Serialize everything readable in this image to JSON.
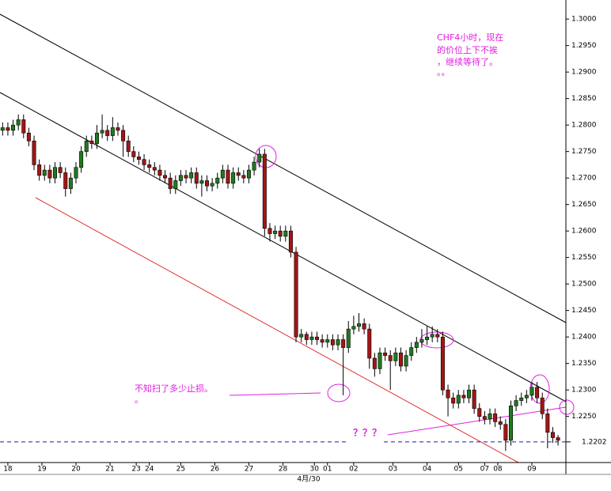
{
  "chart_data": {
    "type": "candlestick",
    "xlim": [
      -0.5,
      107.5
    ],
    "ylim": [
      1.2163,
      1.3036
    ],
    "yticks": [
      {
        "value": 1.3,
        "label": "1.3000"
      },
      {
        "value": 1.295,
        "label": "1.2950"
      },
      {
        "value": 1.29,
        "label": "1.2900"
      },
      {
        "value": 1.285,
        "label": "1.2850"
      },
      {
        "value": 1.28,
        "label": "1.2800"
      },
      {
        "value": 1.275,
        "label": "1.2750"
      },
      {
        "value": 1.27,
        "label": "1.2700"
      },
      {
        "value": 1.265,
        "label": "1.2650"
      },
      {
        "value": 1.26,
        "label": "1.2600"
      },
      {
        "value": 1.255,
        "label": "1.2550"
      },
      {
        "value": 1.25,
        "label": "1.2500"
      },
      {
        "value": 1.245,
        "label": "1.2450"
      },
      {
        "value": 1.24,
        "label": "1.2400"
      },
      {
        "value": 1.235,
        "label": "1.2350"
      },
      {
        "value": 1.23,
        "label": "1.2300"
      },
      {
        "value": 1.225,
        "label": "1.2250"
      }
    ],
    "xticks": [
      {
        "value": 1,
        "label": "18"
      },
      {
        "value": 7.5,
        "label": "19"
      },
      {
        "value": 14,
        "label": "20"
      },
      {
        "value": 20.5,
        "label": "21"
      },
      {
        "value": 25.5,
        "label": "23"
      },
      {
        "value": 28,
        "label": "24"
      },
      {
        "value": 34,
        "label": "25"
      },
      {
        "value": 40.5,
        "label": "26"
      },
      {
        "value": 47,
        "label": "27"
      },
      {
        "value": 53.5,
        "label": "28"
      },
      {
        "value": 59.5,
        "label": "30"
      },
      {
        "value": 62,
        "label": "01"
      },
      {
        "value": 67,
        "label": "02"
      },
      {
        "value": 74.5,
        "label": "03"
      },
      {
        "value": 81,
        "label": "04"
      },
      {
        "value": 87,
        "label": "05"
      },
      {
        "value": 92,
        "label": "07"
      },
      {
        "value": 94.5,
        "label": "08"
      },
      {
        "value": 101,
        "label": "09"
      }
    ],
    "x_sublabel": "4月/30",
    "up_color": "#1f7a1f",
    "down_color": "#a31515",
    "open": [
      1.279,
      1.2795,
      1.279,
      1.28,
      1.281,
      1.2785,
      1.277,
      1.2725,
      1.2705,
      1.2715,
      1.27,
      1.272,
      1.271,
      1.268,
      1.27,
      1.272,
      1.275,
      1.277,
      1.2765,
      1.2785,
      1.279,
      1.278,
      1.2795,
      1.279,
      1.277,
      1.275,
      1.274,
      1.2735,
      1.2725,
      1.272,
      1.2715,
      1.2705,
      1.27,
      1.268,
      1.2695,
      1.2705,
      1.27,
      1.271,
      1.269,
      1.2695,
      1.2685,
      1.269,
      1.27,
      1.2715,
      1.269,
      1.271,
      1.2705,
      1.27,
      1.2715,
      1.273,
      1.2745,
      1.2605,
      1.2595,
      1.26,
      1.259,
      1.26,
      1.256,
      1.24,
      1.2405,
      1.2395,
      1.24,
      1.2395,
      1.239,
      1.2395,
      1.2385,
      1.2395,
      1.238,
      1.2415,
      1.242,
      1.2425,
      1.2415,
      1.236,
      1.234,
      1.237,
      1.2365,
      1.2355,
      1.237,
      1.2345,
      1.2365,
      1.238,
      1.239,
      1.2395,
      1.24,
      1.2405,
      1.24,
      1.23,
      1.2285,
      1.2275,
      1.229,
      1.2285,
      1.23,
      1.2265,
      1.225,
      1.2245,
      1.2255,
      1.224,
      1.2235,
      1.2205,
      1.227,
      1.228,
      1.2285,
      1.229,
      1.2305,
      1.2285,
      1.2255,
      1.222,
      1.221
    ],
    "high": [
      1.2805,
      1.2805,
      1.281,
      1.282,
      1.282,
      1.2795,
      1.278,
      1.2735,
      1.2725,
      1.2725,
      1.273,
      1.273,
      1.272,
      1.271,
      1.273,
      1.276,
      1.278,
      1.278,
      1.28,
      1.282,
      1.28,
      1.2815,
      1.2805,
      1.28,
      1.278,
      1.276,
      1.275,
      1.2745,
      1.2735,
      1.273,
      1.2725,
      1.2715,
      1.271,
      1.2705,
      1.2715,
      1.2715,
      1.272,
      1.272,
      1.2705,
      1.2705,
      1.27,
      1.271,
      1.2725,
      1.2725,
      1.272,
      1.272,
      1.2715,
      1.2725,
      1.274,
      1.2755,
      1.2755,
      1.2615,
      1.261,
      1.261,
      1.261,
      1.261,
      1.257,
      1.2415,
      1.241,
      1.241,
      1.241,
      1.2405,
      1.2405,
      1.2405,
      1.2405,
      1.2405,
      1.243,
      1.244,
      1.2445,
      1.2435,
      1.2425,
      1.237,
      1.238,
      1.238,
      1.2375,
      1.238,
      1.238,
      1.2375,
      1.239,
      1.24,
      1.2415,
      1.242,
      1.242,
      1.2415,
      1.241,
      1.231,
      1.2295,
      1.23,
      1.23,
      1.231,
      1.231,
      1.2275,
      1.226,
      1.2265,
      1.2265,
      1.225,
      1.2245,
      1.228,
      1.229,
      1.2295,
      1.23,
      1.2315,
      1.2315,
      1.2295,
      1.2265,
      1.223,
      1.2215
    ],
    "low": [
      1.278,
      1.278,
      1.278,
      1.279,
      1.2775,
      1.276,
      1.2715,
      1.2695,
      1.2695,
      1.269,
      1.269,
      1.27,
      1.2665,
      1.267,
      1.269,
      1.271,
      1.274,
      1.2755,
      1.2755,
      1.2775,
      1.277,
      1.277,
      1.278,
      1.274,
      1.274,
      1.273,
      1.2725,
      1.2715,
      1.271,
      1.2705,
      1.2695,
      1.269,
      1.267,
      1.267,
      1.2685,
      1.269,
      1.269,
      1.268,
      1.2665,
      1.2675,
      1.2675,
      1.268,
      1.269,
      1.268,
      1.268,
      1.2695,
      1.269,
      1.269,
      1.2705,
      1.272,
      1.259,
      1.258,
      1.2585,
      1.258,
      1.258,
      1.255,
      1.239,
      1.239,
      1.2385,
      1.2385,
      1.2385,
      1.238,
      1.238,
      1.2375,
      1.2375,
      1.229,
      1.237,
      1.2405,
      1.241,
      1.2405,
      1.234,
      1.2325,
      1.233,
      1.2355,
      1.23,
      1.2345,
      1.2335,
      1.2335,
      1.2355,
      1.237,
      1.238,
      1.2385,
      1.239,
      1.239,
      1.229,
      1.225,
      1.2265,
      1.2265,
      1.2275,
      1.2275,
      1.2255,
      1.224,
      1.2235,
      1.2235,
      1.223,
      1.2225,
      1.2185,
      1.2195,
      1.226,
      1.227,
      1.2275,
      1.228,
      1.2275,
      1.2245,
      1.219,
      1.22,
      1.2195
    ],
    "close": [
      1.2795,
      1.279,
      1.28,
      1.281,
      1.2785,
      1.277,
      1.2725,
      1.2705,
      1.2715,
      1.27,
      1.272,
      1.271,
      1.268,
      1.27,
      1.272,
      1.275,
      1.277,
      1.2765,
      1.2785,
      1.279,
      1.278,
      1.2795,
      1.279,
      1.277,
      1.275,
      1.274,
      1.2735,
      1.2725,
      1.272,
      1.2715,
      1.2705,
      1.27,
      1.268,
      1.2695,
      1.2705,
      1.27,
      1.271,
      1.269,
      1.2695,
      1.2685,
      1.269,
      1.27,
      1.2715,
      1.269,
      1.271,
      1.2705,
      1.27,
      1.2715,
      1.273,
      1.2745,
      1.2605,
      1.2595,
      1.26,
      1.259,
      1.26,
      1.256,
      1.24,
      1.2405,
      1.2395,
      1.24,
      1.2395,
      1.239,
      1.2395,
      1.2385,
      1.2395,
      1.238,
      1.2415,
      1.242,
      1.2425,
      1.2415,
      1.236,
      1.234,
      1.237,
      1.2365,
      1.2355,
      1.237,
      1.2345,
      1.2365,
      1.238,
      1.239,
      1.2395,
      1.24,
      1.2405,
      1.24,
      1.23,
      1.2285,
      1.2275,
      1.229,
      1.2285,
      1.23,
      1.2265,
      1.225,
      1.2245,
      1.2255,
      1.224,
      1.2235,
      1.2205,
      1.227,
      1.228,
      1.2285,
      1.229,
      1.2305,
      1.2285,
      1.2255,
      1.222,
      1.221,
      1.2205
    ],
    "current_price": 1.2202,
    "current_price_color": "#1a1aa8",
    "annotations": {
      "top_note": [
        "CHF4小时，现在",
        "的价位上下不挨",
        "，继续等待了。",
        "。。"
      ],
      "stop_note": [
        "不知扫了多少止损。",
        "。"
      ],
      "question": "？？？"
    }
  }
}
